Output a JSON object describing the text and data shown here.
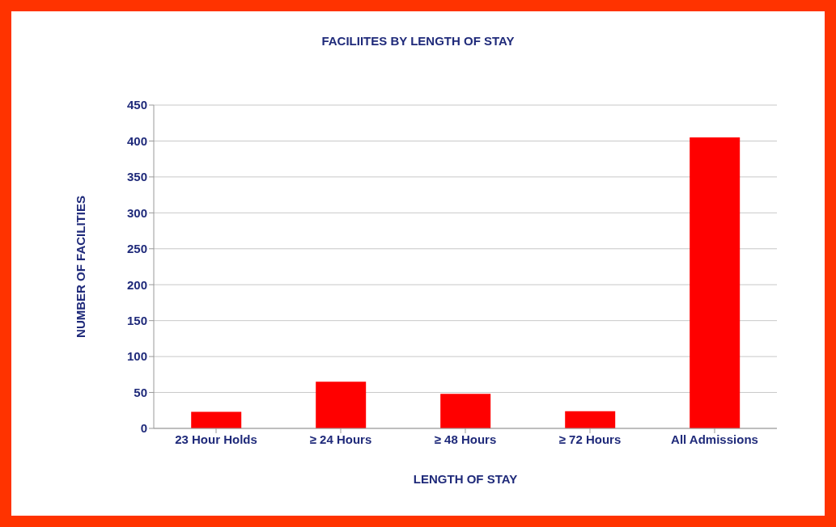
{
  "chart_data": {
    "type": "bar",
    "title": "FACILIITES BY LENGTH OF STAY",
    "xlabel": "LENGTH OF STAY",
    "ylabel": "NUMBER OF FACILITIES",
    "categories": [
      "23 Hour Holds",
      "≥ 24 Hours",
      "≥ 48 Hours",
      "≥ 72 Hours",
      "All Admissions"
    ],
    "values": [
      23,
      65,
      48,
      24,
      405
    ],
    "color": "#ff0000",
    "ylim": [
      0,
      450
    ],
    "yticks": [
      0,
      50,
      100,
      150,
      200,
      250,
      300,
      350,
      400,
      450
    ],
    "grid": "y"
  }
}
